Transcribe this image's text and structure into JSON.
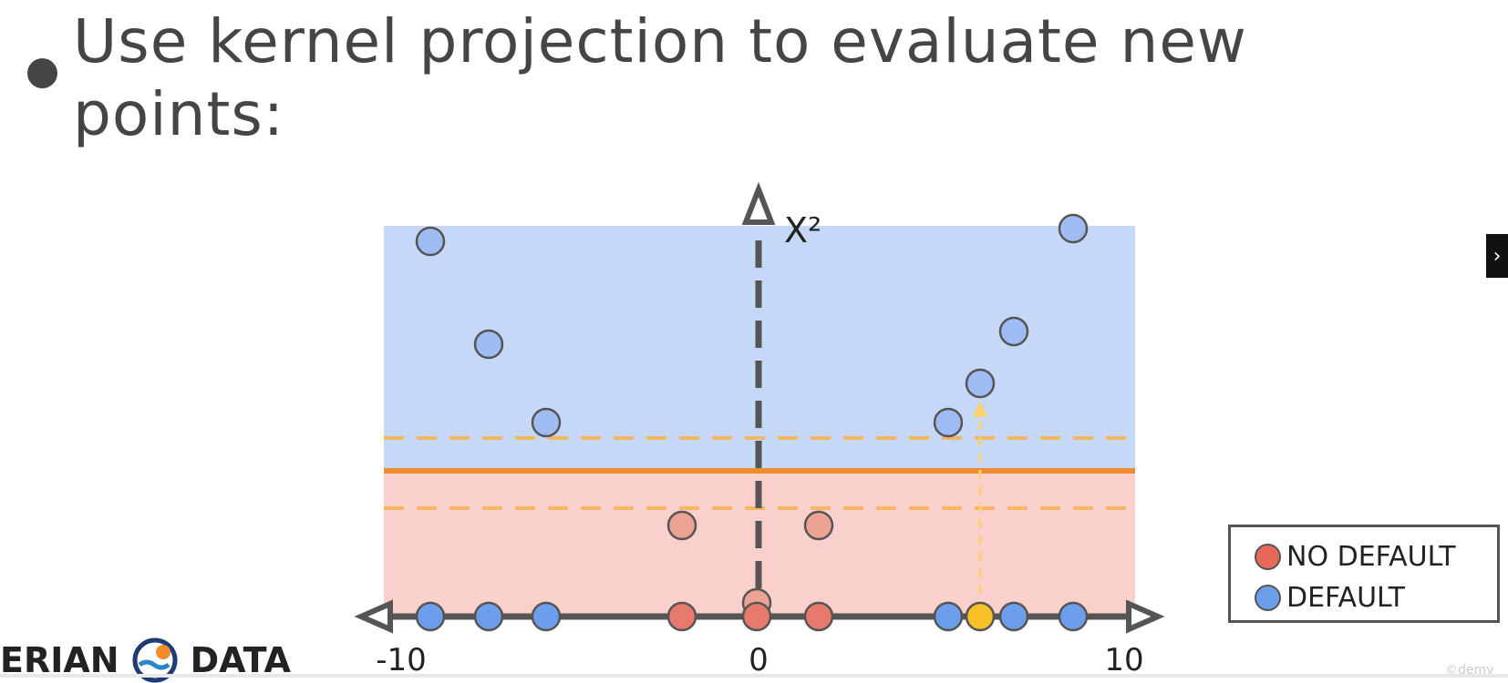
{
  "slide": {
    "title": "Use kernel projection to evaluate new points:"
  },
  "diagram": {
    "y_axis_label": "X²",
    "x_ticks": [
      "-10",
      "0",
      "10"
    ],
    "colors": {
      "default_region": "#c6d8f8",
      "no_default_region": "#f9d0cc",
      "default_point": "#9fbdf2",
      "default_point_axis": "#6d9eeb",
      "no_default_point": "#e87a6d",
      "no_default_point_light": "#eda393",
      "new_point": "#f6c026",
      "boundary": "#ef8c2e",
      "margin": "#f5b563",
      "axis": "#555555"
    },
    "axis_points": [
      {
        "x": -9,
        "class": "default"
      },
      {
        "x": -7.5,
        "class": "default"
      },
      {
        "x": -6,
        "class": "default"
      },
      {
        "x": -2,
        "class": "no_default"
      },
      {
        "x": 0,
        "class": "no_default"
      },
      {
        "x": 1.6,
        "class": "no_default"
      },
      {
        "x": 5,
        "class": "default"
      },
      {
        "x": 5.8,
        "class": "new"
      },
      {
        "x": 6.7,
        "class": "default"
      },
      {
        "x": 8.3,
        "class": "default"
      }
    ],
    "projected_points": [
      {
        "x": -9,
        "class": "default"
      },
      {
        "x": -7.5,
        "class": "default"
      },
      {
        "x": -6,
        "class": "default"
      },
      {
        "x": -2,
        "class": "no_default"
      },
      {
        "x": 0,
        "class": "no_default"
      },
      {
        "x": 1.6,
        "class": "no_default"
      },
      {
        "x": 5,
        "class": "default"
      },
      {
        "x": 5.8,
        "class": "default"
      },
      {
        "x": 6.7,
        "class": "default"
      },
      {
        "x": 8.3,
        "class": "default"
      }
    ]
  },
  "legend": {
    "items": [
      {
        "label": "NO DEFAULT",
        "color": "#e8695c"
      },
      {
        "label": "DEFAULT",
        "color": "#6d9eeb"
      }
    ]
  },
  "brand": {
    "left_text": "ERIAN",
    "right_text": "DATA"
  },
  "watermark": "©demy",
  "nav_icon": "chevron-right-icon"
}
